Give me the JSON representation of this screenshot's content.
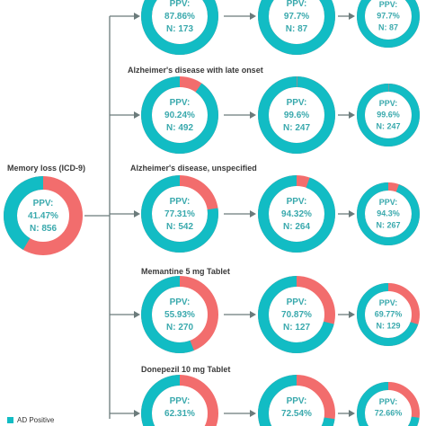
{
  "colors": {
    "positive": "#12bcc4",
    "negative": "#f26d6d",
    "line": "#6b7b7b",
    "text": "#3aa9ad"
  },
  "root": {
    "label": "Memory loss (ICD-9)",
    "ppv": "PPV:\n41.47%",
    "ppv_text": "41.47%",
    "ppv_value": 41.47,
    "n": "N: 856"
  },
  "rows": [
    {
      "label": "",
      "nodes": [
        {
          "ppv_text": "87.86%",
          "ppv_value": 87.86,
          "n": "N: 173"
        },
        {
          "ppv_text": "97.7%",
          "ppv_value": 97.7,
          "n": "N: 87"
        },
        {
          "ppv_text": "97.7%",
          "ppv_value": 97.7,
          "n": "N: 87"
        }
      ]
    },
    {
      "label": "Alzheimer's disease with late onset",
      "nodes": [
        {
          "ppv_text": "90.24%",
          "ppv_value": 90.24,
          "n": "N: 492"
        },
        {
          "ppv_text": "99.6%",
          "ppv_value": 99.6,
          "n": "N: 247"
        },
        {
          "ppv_text": "99.6%",
          "ppv_value": 99.6,
          "n": "N: 247"
        }
      ]
    },
    {
      "label": "Alzheimer's disease, unspecified",
      "nodes": [
        {
          "ppv_text": "77.31%",
          "ppv_value": 77.31,
          "n": "N: 542"
        },
        {
          "ppv_text": "94.32%",
          "ppv_value": 94.32,
          "n": "N: 264"
        },
        {
          "ppv_text": "94.3%",
          "ppv_value": 94.3,
          "n": "N: 267"
        }
      ]
    },
    {
      "label": "Memantine 5 mg Tablet",
      "nodes": [
        {
          "ppv_text": "55.93%",
          "ppv_value": 55.93,
          "n": "N: 270"
        },
        {
          "ppv_text": "70.87%",
          "ppv_value": 70.87,
          "n": "N: 127"
        },
        {
          "ppv_text": "69.77%",
          "ppv_value": 69.77,
          "n": "N: 129"
        }
      ]
    },
    {
      "label": "Donepezil 10 mg Tablet",
      "nodes": [
        {
          "ppv_text": "62.31%",
          "ppv_value": 62.31,
          "n": ""
        },
        {
          "ppv_text": "72.54%",
          "ppv_value": 72.54,
          "n": ""
        },
        {
          "ppv_text": "72.66%",
          "ppv_value": 72.66,
          "n": ""
        }
      ]
    }
  ],
  "ppv_prefix": "PPV:",
  "legend": {
    "positive_label": "AD Positive"
  }
}
